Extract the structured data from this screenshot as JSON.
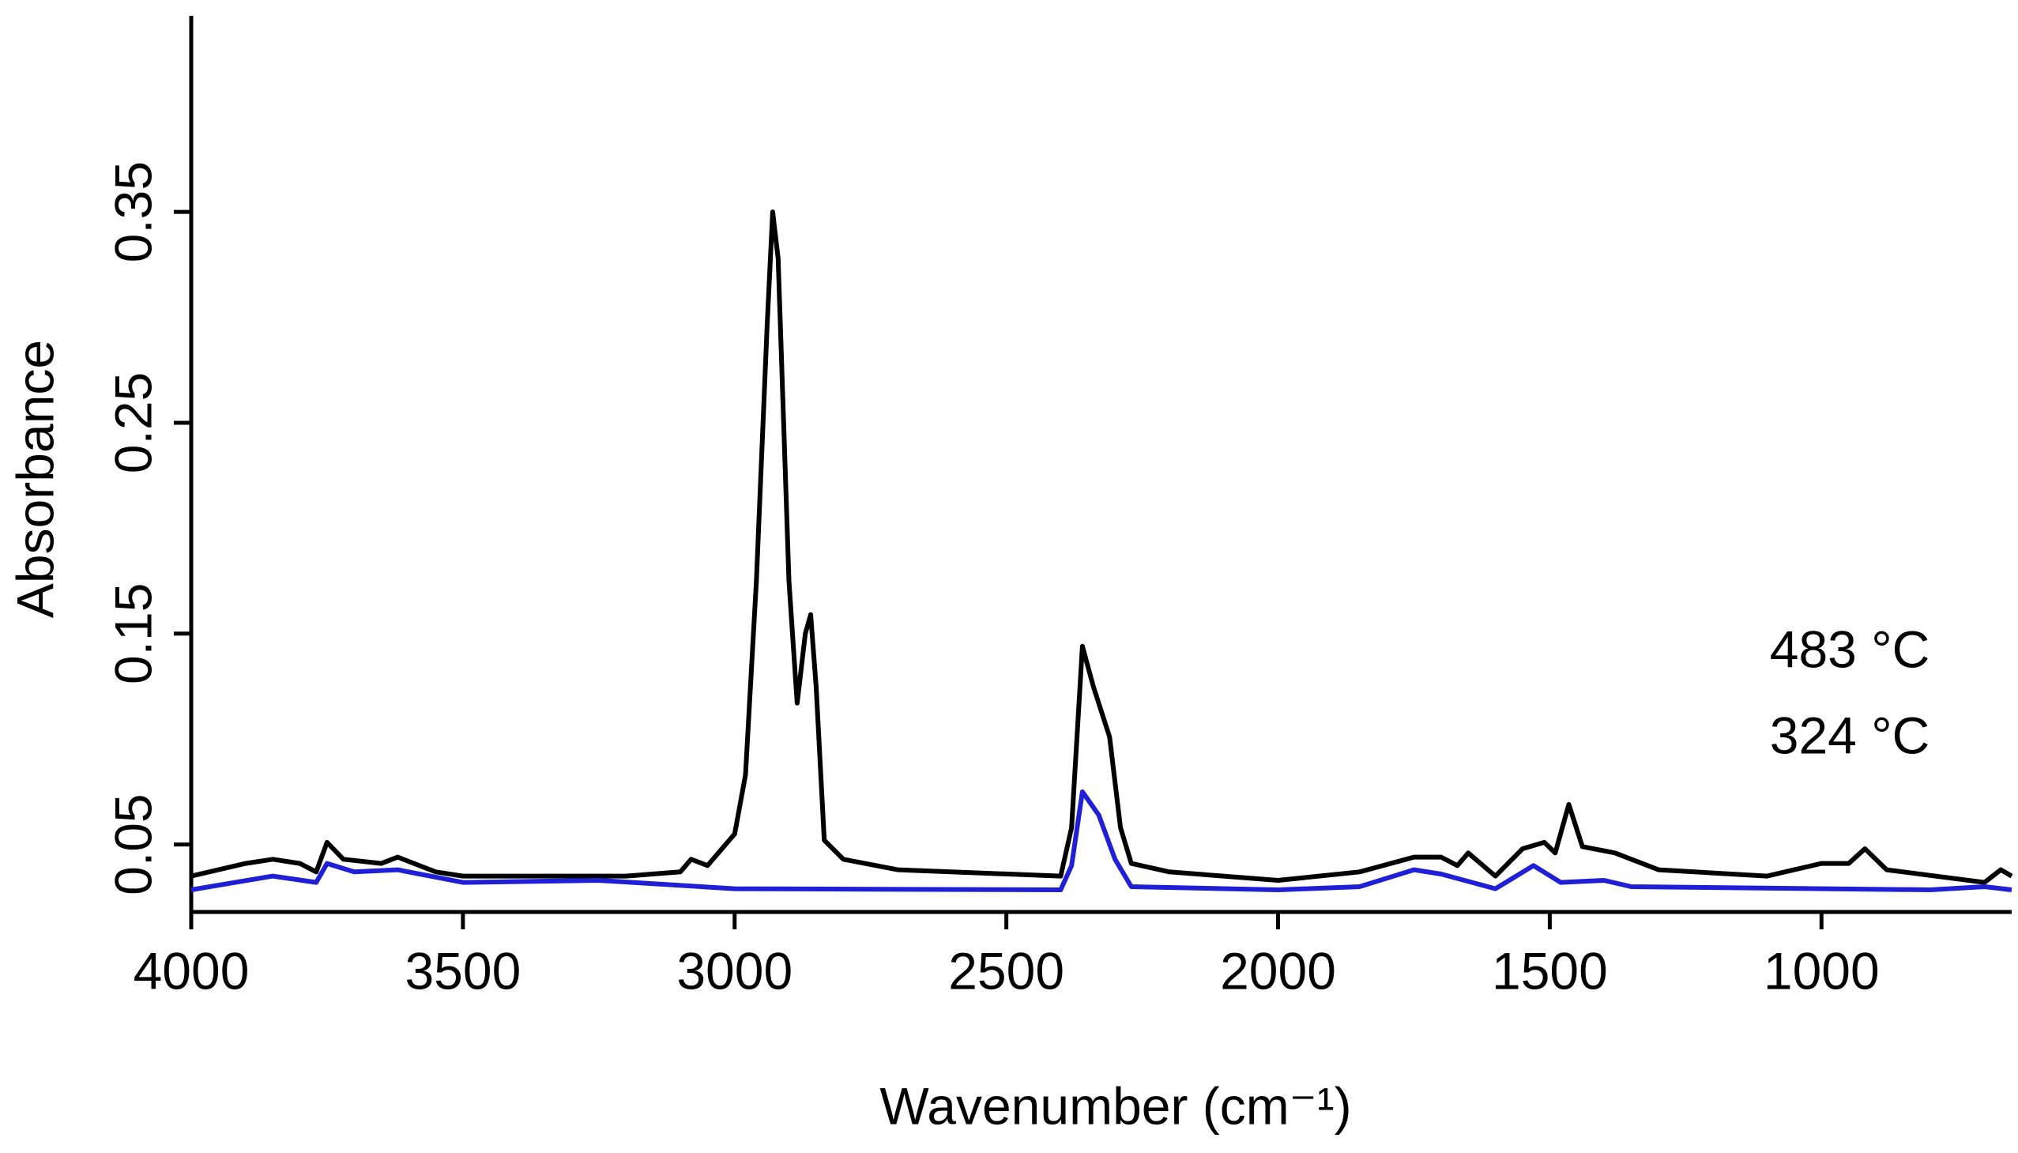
{
  "chart_data": {
    "type": "line",
    "x_label": "Wavenumber (cm⁻¹)",
    "y_label": "Absorbance",
    "xlim": [
      4000,
      650
    ],
    "ylim": [
      0.018,
      0.443
    ],
    "xticks": [
      4000,
      3500,
      3000,
      2500,
      2000,
      1500,
      1000
    ],
    "yticks": [
      0.05,
      0.15,
      0.25,
      0.35
    ],
    "series": [
      {
        "name": "483 °C",
        "color": "#000000",
        "x": [
          4000,
          3900,
          3850,
          3800,
          3770,
          3750,
          3720,
          3650,
          3620,
          3550,
          3500,
          3200,
          3100,
          3080,
          3050,
          3000,
          2980,
          2960,
          2940,
          2930,
          2920,
          2900,
          2885,
          2870,
          2860,
          2850,
          2835,
          2800,
          2700,
          2400,
          2380,
          2360,
          2340,
          2310,
          2290,
          2270,
          2200,
          2000,
          1850,
          1750,
          1700,
          1670,
          1650,
          1600,
          1550,
          1510,
          1490,
          1465,
          1440,
          1380,
          1300,
          1100,
          1000,
          950,
          920,
          880,
          700,
          670,
          650
        ],
        "values": [
          0.035,
          0.041,
          0.043,
          0.041,
          0.037,
          0.051,
          0.043,
          0.041,
          0.044,
          0.037,
          0.035,
          0.035,
          0.037,
          0.043,
          0.04,
          0.055,
          0.083,
          0.175,
          0.297,
          0.35,
          0.328,
          0.175,
          0.117,
          0.15,
          0.159,
          0.125,
          0.052,
          0.043,
          0.038,
          0.035,
          0.058,
          0.144,
          0.125,
          0.101,
          0.058,
          0.041,
          0.037,
          0.033,
          0.037,
          0.044,
          0.044,
          0.04,
          0.046,
          0.035,
          0.048,
          0.051,
          0.046,
          0.069,
          0.049,
          0.046,
          0.038,
          0.035,
          0.041,
          0.041,
          0.048,
          0.038,
          0.032,
          0.038,
          0.035
        ]
      },
      {
        "name": "324 °C",
        "color": "#1f1fd6",
        "x": [
          4000,
          3850,
          3770,
          3750,
          3700,
          3620,
          3500,
          3250,
          3000,
          2400,
          2380,
          2360,
          2330,
          2300,
          2270,
          2000,
          1850,
          1750,
          1700,
          1600,
          1530,
          1480,
          1400,
          1350,
          800,
          700,
          650
        ],
        "values": [
          0.0285,
          0.035,
          0.032,
          0.041,
          0.037,
          0.038,
          0.032,
          0.033,
          0.029,
          0.0285,
          0.04,
          0.075,
          0.064,
          0.043,
          0.03,
          0.0285,
          0.03,
          0.038,
          0.036,
          0.029,
          0.04,
          0.032,
          0.033,
          0.03,
          0.0285,
          0.03,
          0.0285
        ]
      }
    ]
  }
}
